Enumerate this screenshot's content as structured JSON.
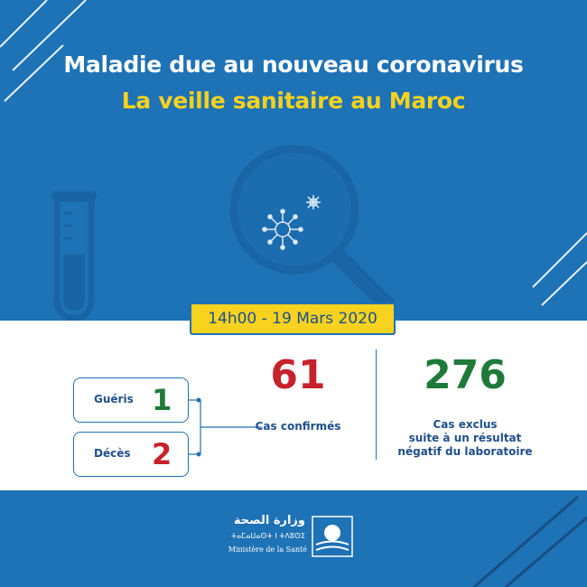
{
  "header": {
    "title": "Maladie due au nouveau coronavirus",
    "subtitle": "La veille sanitaire au Maroc"
  },
  "date": "14h00 - 19 Mars 2020",
  "stats": {
    "recovered": {
      "label": "Guéris",
      "value": "1"
    },
    "deaths": {
      "label": "Décès",
      "value": "2"
    },
    "confirmed": {
      "value": "61",
      "label": "Cas confirmés"
    },
    "excluded": {
      "value": "276",
      "label_lines": [
        "Cas exclus",
        "suite à un résultat",
        "négatif du laboratoire"
      ]
    }
  },
  "footer": {
    "ministry_arabic": "وزارة الصحة",
    "ministry_tifinagh": "ⵜⴰⵎⴰⵡⴰⵙⵜ ⵏ ⵜⴷⵓⵙⵉ",
    "ministry_french": "Ministère de la Santé"
  },
  "colors": {
    "background": "#1e72b6",
    "accent_yellow": "#f7d21e",
    "green": "#1f7a3a",
    "red": "#c6222b",
    "text_blue": "#1e4f8c"
  },
  "icons": [
    "test-tube-icon",
    "magnifier-icon",
    "virus-icon",
    "ministry-logo-icon"
  ]
}
